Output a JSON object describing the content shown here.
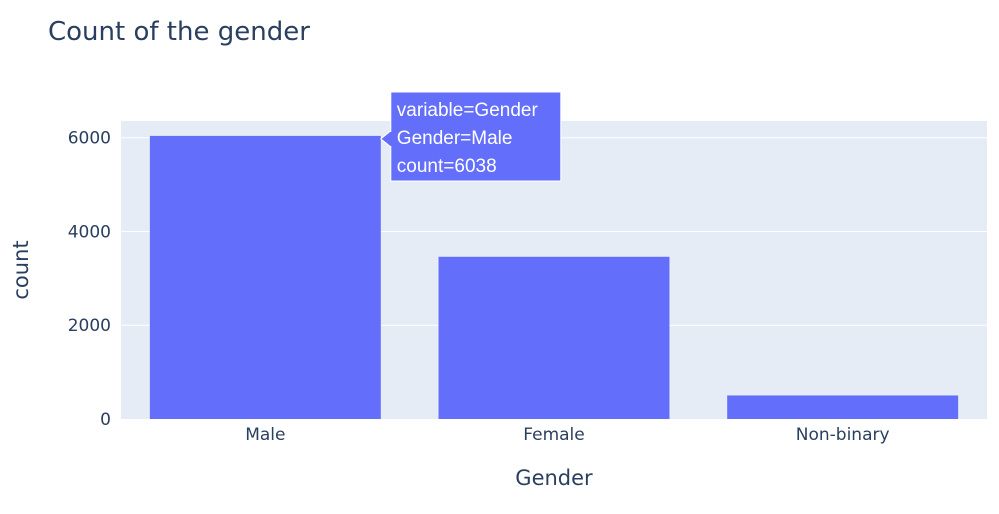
{
  "chart_data": {
    "type": "bar",
    "title": "Count of the gender",
    "xlabel": "Gender",
    "ylabel": "count",
    "categories": [
      "Male",
      "Female",
      "Non-binary"
    ],
    "series": [
      {
        "values": [
          6038,
          3460,
          502
        ]
      }
    ],
    "yticks": [
      0,
      2000,
      4000,
      6000
    ],
    "ylim": [
      0,
      6356
    ],
    "grid": true,
    "legend": "none",
    "colors": {
      "bar": "#636efa",
      "plot_background": "#e5ecf6",
      "grid": "#ffffff",
      "text": "#2a3f5f"
    },
    "hover": {
      "lines": [
        "variable=Gender",
        "Gender=Male",
        "count=6038"
      ]
    }
  }
}
